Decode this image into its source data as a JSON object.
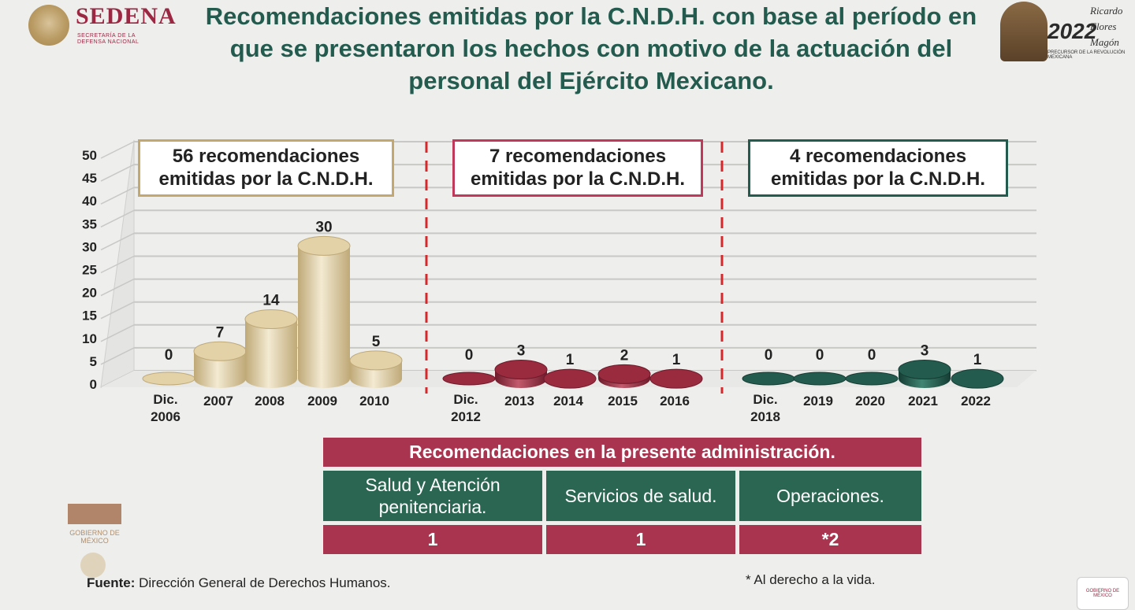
{
  "header": {
    "brand": "SEDENA",
    "brand_sub1": "SECRETARÍA DE LA",
    "brand_sub2": "DEFENSA NACIONAL",
    "title": "Recomendaciones emitidas por la C.N.D.H. con base al período en que se presentaron los hechos con motivo de la actuación del personal del Ejército Mexicano.",
    "right_year": "2022",
    "right_name": "Ricardo Flores Magón",
    "right_tag": "PRECURSOR DE LA REVOLUCIÓN MEXICANA"
  },
  "chart_data": {
    "type": "bar",
    "ylim": [
      0,
      50
    ],
    "yticks": [
      0,
      5,
      10,
      15,
      20,
      25,
      30,
      35,
      40,
      45,
      50
    ],
    "groups": [
      {
        "label": "56 recomendaciones emitidas por la C.N.D.H.",
        "color": "#e6d7b0",
        "categories": [
          "Dic. 2006",
          "2007",
          "2008",
          "2009",
          "2010"
        ],
        "values": [
          0,
          7,
          14,
          30,
          5
        ]
      },
      {
        "label": "7 recomendaciones emitidas por la C.N.D.H.",
        "color": "#9e2a3e",
        "categories": [
          "Dic. 2012",
          "2013",
          "2014",
          "2015",
          "2016"
        ],
        "values": [
          0,
          3,
          1,
          2,
          1
        ]
      },
      {
        "label": "4 recomendaciones emitidas por la C.N.D.H.",
        "color": "#235b4e",
        "categories": [
          "Dic. 2018",
          "2019",
          "2020",
          "2021",
          "2022"
        ],
        "values": [
          0,
          0,
          0,
          3,
          1
        ]
      }
    ],
    "grid": true
  },
  "table": {
    "header": "Recomendaciones en la presente administración.",
    "categories": [
      "Salud y Atención penitenciaria.",
      "Servicios de salud.",
      "Operaciones."
    ],
    "values": [
      "1",
      "1",
      "*2"
    ]
  },
  "source_label": "Fuente:",
  "source_text": "Dirección General de Derechos Humanos.",
  "footnote": "* Al derecho a la vida.",
  "gov_label": "GOBIERNO DE MÉXICO"
}
